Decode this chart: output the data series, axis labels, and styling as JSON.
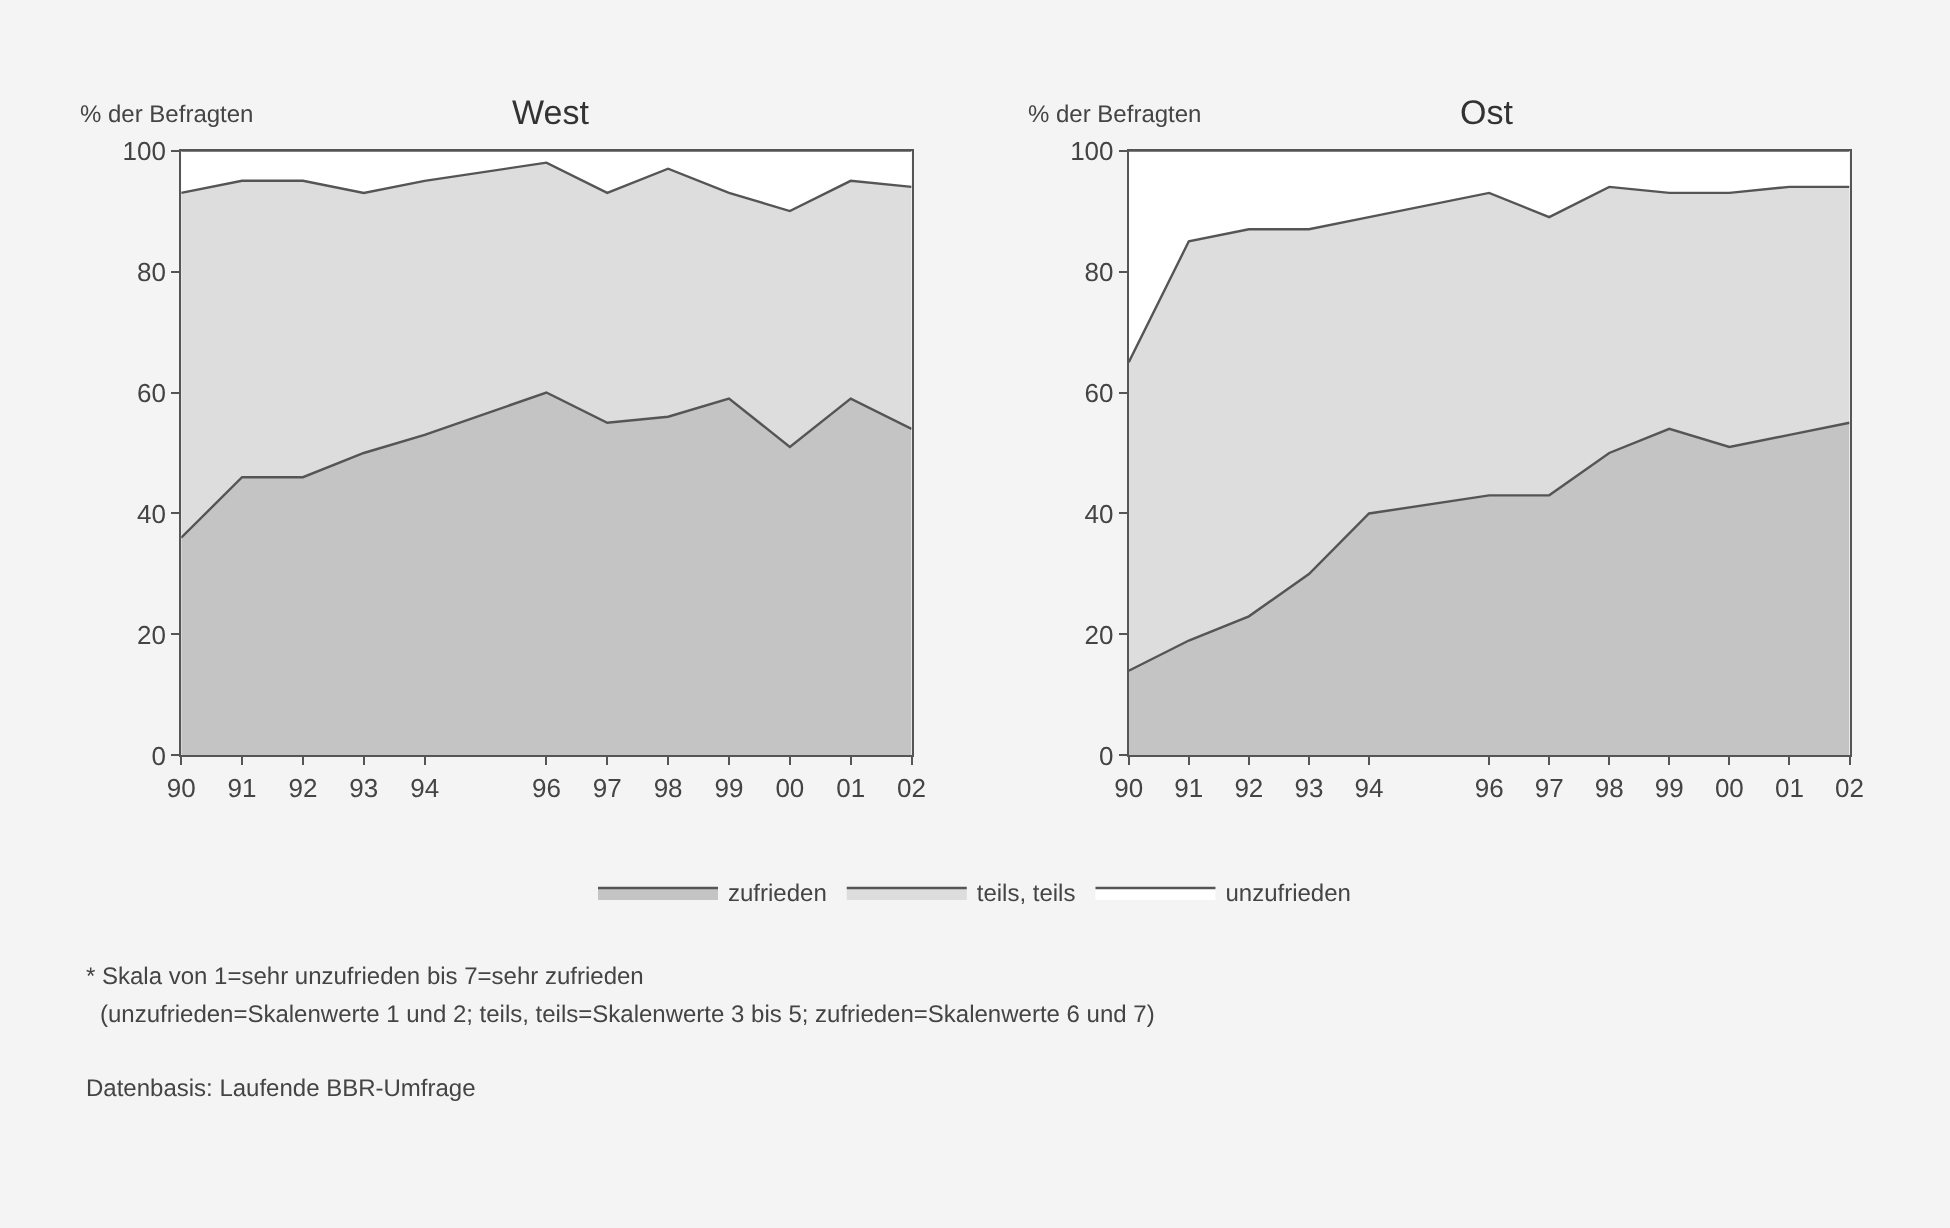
{
  "chart_data": [
    {
      "type": "area",
      "title": "West",
      "ylabel": "% der Befragten",
      "stacked": true,
      "legend": "bottom",
      "grid": false,
      "x": [
        1990,
        1991,
        1992,
        1993,
        1994,
        1996,
        1997,
        1998,
        1999,
        2000,
        2001,
        2002
      ],
      "xlim": [
        1990,
        2002
      ],
      "xticks": [
        {
          "value": 1990,
          "label": "90"
        },
        {
          "value": 1991,
          "label": "91"
        },
        {
          "value": 1992,
          "label": "92"
        },
        {
          "value": 1993,
          "label": "93"
        },
        {
          "value": 1994,
          "label": "94"
        },
        {
          "value": 1996,
          "label": "96"
        },
        {
          "value": 1997,
          "label": "97"
        },
        {
          "value": 1998,
          "label": "98"
        },
        {
          "value": 1999,
          "label": "99"
        },
        {
          "value": 2000,
          "label": "00"
        },
        {
          "value": 2001,
          "label": "01"
        },
        {
          "value": 2002,
          "label": "02"
        }
      ],
      "ylim": [
        0,
        100
      ],
      "yticks": [
        0,
        20,
        40,
        60,
        80,
        100
      ],
      "series": [
        {
          "name": "zufrieden",
          "color": "#c4c4c4",
          "values": [
            36,
            46,
            46,
            50,
            53,
            60,
            55,
            56,
            59,
            51,
            59,
            54
          ]
        },
        {
          "name": "teils, teils",
          "color": "#dddddd",
          "values": [
            57,
            49,
            49,
            43,
            42,
            38,
            38,
            41,
            34,
            39,
            36,
            40
          ]
        },
        {
          "name": "unzufrieden",
          "color": "#ffffff",
          "values": [
            7,
            5,
            5,
            7,
            5,
            2,
            7,
            3,
            7,
            10,
            5,
            6
          ]
        }
      ],
      "annotations": [
        "* Skala von 1=sehr unzufrieden bis 7=sehr zufrieden",
        "(unzufrieden=Skalenwerte 1 und 2; teils, teils=Skalenwerte 3 bis 5; zufrieden=Skalenwerte 6 und 7)",
        "Datenbasis: Laufende BBR-Umfrage"
      ]
    },
    {
      "type": "area",
      "title": "Ost",
      "ylabel": "% der Befragten",
      "stacked": true,
      "legend": "bottom",
      "grid": false,
      "x": [
        1990,
        1991,
        1992,
        1993,
        1994,
        1996,
        1997,
        1998,
        1999,
        2000,
        2001,
        2002
      ],
      "xlim": [
        1990,
        2002
      ],
      "xticks": [
        {
          "value": 1990,
          "label": "90"
        },
        {
          "value": 1991,
          "label": "91"
        },
        {
          "value": 1992,
          "label": "92"
        },
        {
          "value": 1993,
          "label": "93"
        },
        {
          "value": 1994,
          "label": "94"
        },
        {
          "value": 1996,
          "label": "96"
        },
        {
          "value": 1997,
          "label": "97"
        },
        {
          "value": 1998,
          "label": "98"
        },
        {
          "value": 1999,
          "label": "99"
        },
        {
          "value": 2000,
          "label": "00"
        },
        {
          "value": 2001,
          "label": "01"
        },
        {
          "value": 2002,
          "label": "02"
        }
      ],
      "ylim": [
        0,
        100
      ],
      "yticks": [
        0,
        20,
        40,
        60,
        80,
        100
      ],
      "series": [
        {
          "name": "zufrieden",
          "color": "#c4c4c4",
          "values": [
            14,
            19,
            23,
            30,
            40,
            43,
            43,
            50,
            54,
            51,
            53,
            55
          ]
        },
        {
          "name": "teils, teils",
          "color": "#dddddd",
          "values": [
            51,
            66,
            64,
            57,
            49,
            50,
            46,
            44,
            39,
            42,
            41,
            39
          ]
        },
        {
          "name": "unzufrieden",
          "color": "#ffffff",
          "values": [
            35,
            15,
            13,
            13,
            11,
            7,
            11,
            6,
            7,
            7,
            6,
            6
          ]
        }
      ]
    }
  ]
}
